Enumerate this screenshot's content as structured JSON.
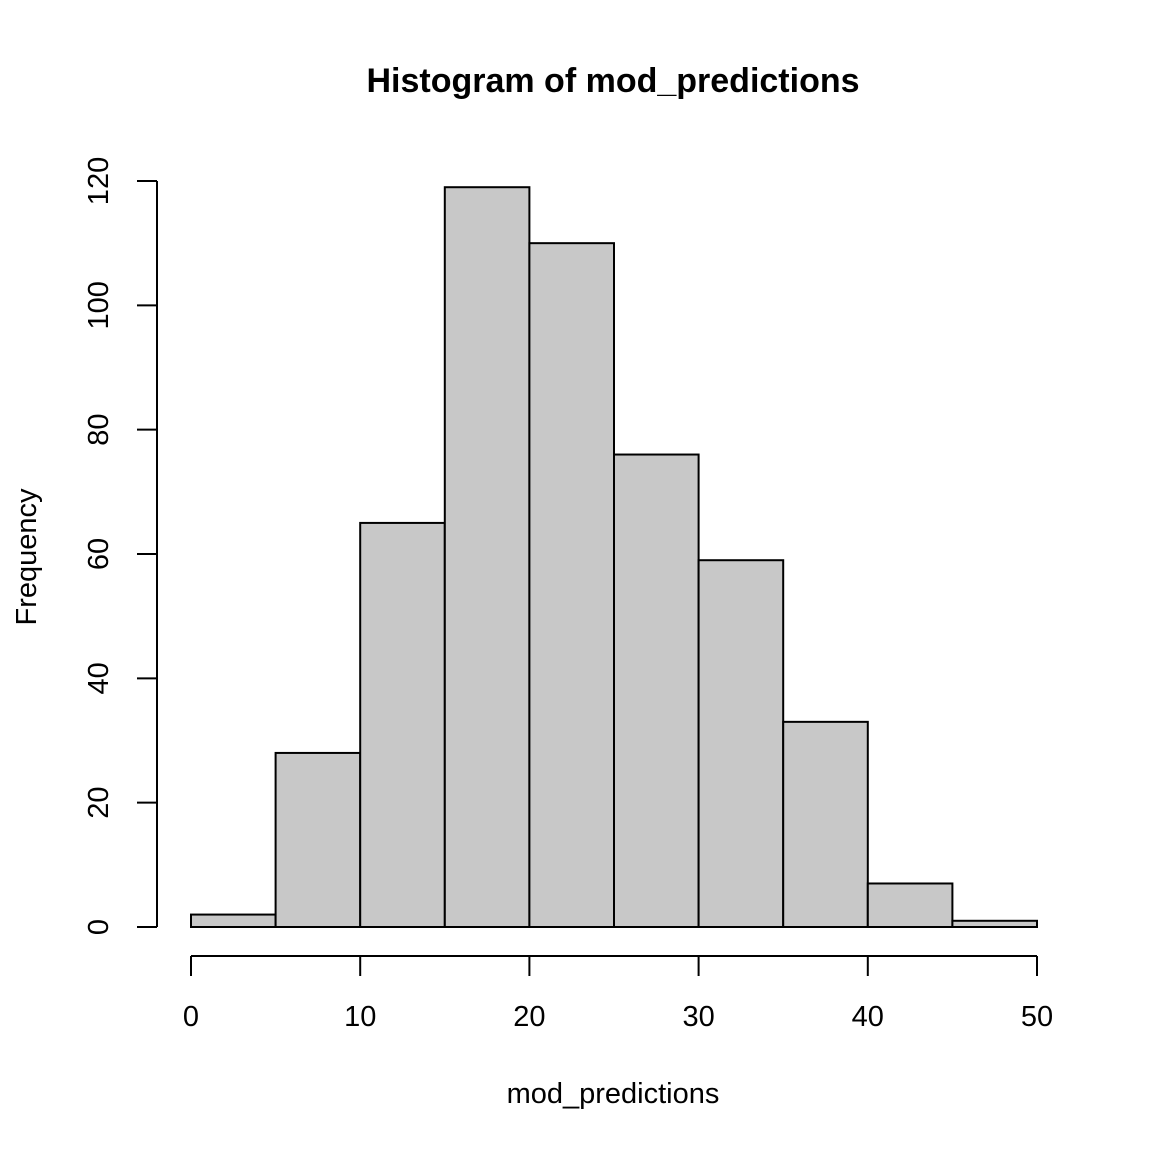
{
  "chart_data": {
    "type": "bar",
    "title": "Histogram of mod_predictions",
    "xlabel": "mod_predictions",
    "ylabel": "Frequency",
    "bins": [
      {
        "x0": 0,
        "x1": 5,
        "count": 2
      },
      {
        "x0": 5,
        "x1": 10,
        "count": 28
      },
      {
        "x0": 10,
        "x1": 15,
        "count": 65
      },
      {
        "x0": 15,
        "x1": 20,
        "count": 119
      },
      {
        "x0": 20,
        "x1": 25,
        "count": 110
      },
      {
        "x0": 25,
        "x1": 30,
        "count": 76
      },
      {
        "x0": 30,
        "x1": 35,
        "count": 59
      },
      {
        "x0": 35,
        "x1": 40,
        "count": 33
      },
      {
        "x0": 40,
        "x1": 45,
        "count": 7
      },
      {
        "x0": 45,
        "x1": 50,
        "count": 1
      }
    ],
    "xlim": [
      0,
      50
    ],
    "ylim": [
      0,
      120
    ],
    "xticks": [
      0,
      10,
      20,
      30,
      40,
      50
    ],
    "yticks": [
      0,
      20,
      40,
      60,
      80,
      100,
      120
    ],
    "bar_color": "#c8c8c8",
    "edge_color": "#000000",
    "grid": false,
    "legend": "none"
  }
}
